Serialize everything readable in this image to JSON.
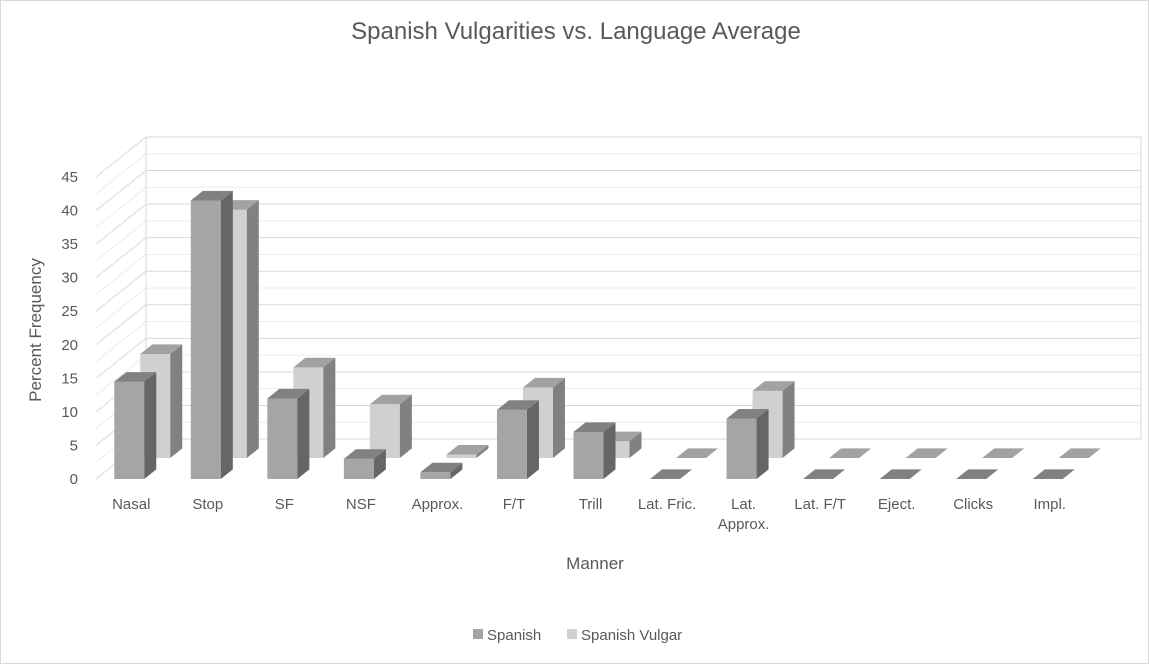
{
  "chart_data": {
    "type": "bar",
    "subtype": "3d-clustered-column",
    "title": "Spanish Vulgarities vs. Language Average",
    "xlabel": "Manner",
    "ylabel": "Percent Frequency",
    "ylim": [
      0,
      45
    ],
    "ytick_step": 5,
    "yticks": [
      "0",
      "5",
      "10",
      "15",
      "20",
      "25",
      "30",
      "35",
      "40",
      "45"
    ],
    "grid": true,
    "legend_position": "bottom",
    "categories": [
      "Nasal",
      "Stop",
      "SF",
      "NSF",
      "Approx.",
      "F/T",
      "Trill",
      "Lat. Fric.",
      "Lat. Approx.",
      "Lat. F/T",
      "Eject.",
      "Clicks",
      "Impl."
    ],
    "category_lines": [
      [
        "Nasal"
      ],
      [
        "Stop"
      ],
      [
        "SF"
      ],
      [
        "NSF"
      ],
      [
        "Approx."
      ],
      [
        "F/T"
      ],
      [
        "Trill"
      ],
      [
        "Lat. Fric."
      ],
      [
        "Lat.",
        "Approx."
      ],
      [
        "Lat. F/T"
      ],
      [
        "Eject."
      ],
      [
        "Clicks"
      ],
      [
        "Impl."
      ]
    ],
    "series": [
      {
        "name": "Spanish",
        "color": "#a5a5a5",
        "values": [
          14.5,
          41.5,
          12,
          3,
          1,
          10.3,
          7,
          0,
          9,
          0,
          0,
          0,
          0
        ]
      },
      {
        "name": "Spanish Vulgar",
        "color": "#d0d0d0",
        "values": [
          15.5,
          37,
          13.5,
          8,
          0.5,
          10.5,
          2.5,
          0,
          10,
          0,
          0,
          0,
          0
        ]
      }
    ]
  }
}
